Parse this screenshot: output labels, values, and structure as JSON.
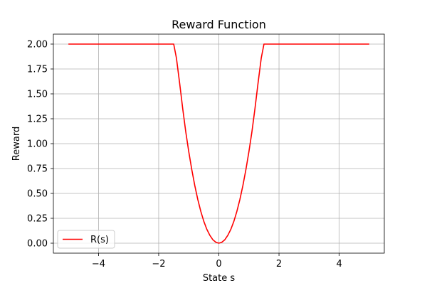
{
  "chart_data": {
    "type": "line",
    "title": "Reward Function",
    "xlabel": "State s",
    "ylabel": "Reward",
    "xlim": [
      -5.5,
      5.5
    ],
    "ylim": [
      -0.1,
      2.1
    ],
    "grid": true,
    "legend_position": "lower-left",
    "x_ticks": [
      -4,
      -2,
      0,
      2,
      4
    ],
    "x_tick_labels": [
      "−4",
      "−2",
      "0",
      "2",
      "4"
    ],
    "y_ticks": [
      0.0,
      0.25,
      0.5,
      0.75,
      1.0,
      1.25,
      1.5,
      1.75,
      2.0
    ],
    "y_tick_labels": [
      "0.00",
      "0.25",
      "0.50",
      "0.75",
      "1.00",
      "1.25",
      "1.50",
      "1.75",
      "2.00"
    ],
    "series": [
      {
        "name": "R(s)",
        "color": "#ff0000",
        "x": [
          -5.0,
          -4.5,
          -4.0,
          -3.5,
          -3.0,
          -2.5,
          -2.0,
          -1.5,
          -1.41,
          -1.3,
          -1.2,
          -1.1,
          -1.0,
          -0.9,
          -0.8,
          -0.7,
          -0.6,
          -0.5,
          -0.4,
          -0.3,
          -0.2,
          -0.1,
          0.0,
          0.1,
          0.2,
          0.3,
          0.4,
          0.5,
          0.6,
          0.7,
          0.8,
          0.9,
          1.0,
          1.1,
          1.2,
          1.3,
          1.41,
          1.5,
          2.0,
          2.5,
          3.0,
          3.5,
          4.0,
          4.5,
          5.0
        ],
        "y": [
          2.0,
          2.0,
          2.0,
          2.0,
          2.0,
          2.0,
          2.0,
          2.0,
          1.86,
          1.6,
          1.35,
          1.12,
          0.92,
          0.74,
          0.58,
          0.44,
          0.32,
          0.22,
          0.14,
          0.08,
          0.035,
          0.01,
          0.0,
          0.01,
          0.035,
          0.08,
          0.14,
          0.22,
          0.32,
          0.44,
          0.58,
          0.74,
          0.92,
          1.12,
          1.35,
          1.6,
          1.86,
          2.0,
          2.0,
          2.0,
          2.0,
          2.0,
          2.0,
          2.0,
          2.0
        ]
      }
    ]
  }
}
